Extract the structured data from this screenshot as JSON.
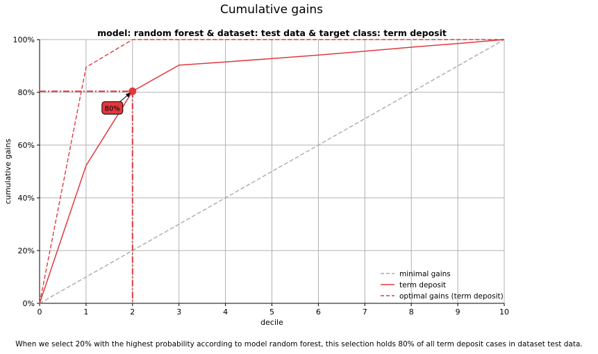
{
  "title": "Cumulative gains",
  "subtitle": "model: random forest & dataset: test data & target class: term deposit",
  "caption": "When we select 20% with the highest probability according to model random forest, this selection holds 80% of all term deposit cases in dataset test data.",
  "colors": {
    "model": "#e0383e",
    "optimal": "#e0383e",
    "minimal": "#aaaaaa",
    "grid": "#b0b0b0",
    "annotation_fill": "#e0383e"
  },
  "chart_data": {
    "type": "line",
    "title": "model: random forest & dataset: test data & target class: term deposit",
    "xlabel": "decile",
    "ylabel": "cumulative gains",
    "xlim": [
      0,
      10
    ],
    "ylim": [
      0,
      100
    ],
    "x_ticks": [
      "0",
      "1",
      "2",
      "3",
      "4",
      "5",
      "6",
      "7",
      "8",
      "9",
      "10"
    ],
    "y_ticks": [
      "0%",
      "20%",
      "40%",
      "60%",
      "80%",
      "100%"
    ],
    "grid": true,
    "legend_position": "bottom-right",
    "series": [
      {
        "name": "minimal gains",
        "style": "dashed",
        "color": "#aaaaaa",
        "x": [
          0,
          10
        ],
        "y": [
          0,
          100
        ]
      },
      {
        "name": "term deposit",
        "style": "solid",
        "color": "#e0383e",
        "x": [
          0,
          1,
          2,
          3,
          4,
          5,
          6,
          7,
          8,
          9,
          10
        ],
        "y": [
          0,
          52.2,
          80.4,
          90.3,
          91.5,
          92.8,
          94.1,
          95.6,
          97.1,
          98.5,
          100
        ]
      },
      {
        "name": "optimal gains (term deposit)",
        "style": "dashed",
        "color": "#e0383e",
        "x": [
          0,
          1,
          2,
          3,
          4,
          5,
          6,
          7,
          8,
          9,
          10
        ],
        "y": [
          0,
          89.5,
          100,
          100,
          100,
          100,
          100,
          100,
          100,
          100,
          100
        ]
      }
    ],
    "highlight": {
      "x": 2,
      "y": 80.4,
      "label": "80%"
    }
  }
}
